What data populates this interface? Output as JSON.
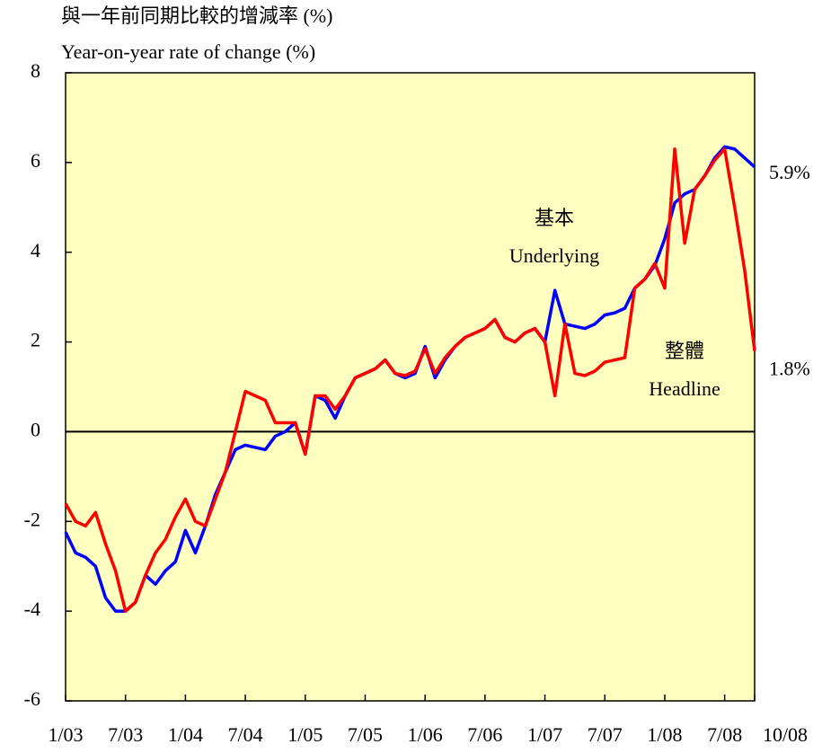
{
  "chart_data": {
    "type": "line",
    "title_zh": "與一年前同期比較的增減率 (%)",
    "title": "Year-on-year rate of change (%)",
    "categories": [
      "1/03",
      null,
      null,
      null,
      null,
      null,
      "7/03",
      null,
      null,
      null,
      null,
      null,
      "1/04",
      null,
      null,
      null,
      null,
      null,
      "7/04",
      null,
      null,
      null,
      null,
      null,
      "1/05",
      null,
      null,
      null,
      null,
      null,
      "7/05",
      null,
      null,
      null,
      null,
      null,
      "1/06",
      null,
      null,
      null,
      null,
      null,
      "7/06",
      null,
      null,
      null,
      null,
      null,
      "1/07",
      null,
      null,
      null,
      null,
      null,
      "7/07",
      null,
      null,
      null,
      null,
      null,
      "1/08",
      null,
      null,
      null,
      null,
      null,
      "7/08",
      null,
      null,
      "10/08"
    ],
    "series": [
      {
        "name": "Underlying",
        "name_zh": "基本",
        "color": "#0000ff",
        "end_label": "5.9%",
        "values": [
          -2.24,
          -2.7,
          -2.8,
          -3.0,
          -3.7,
          -4.0,
          -4.0,
          -3.8,
          -3.2,
          -3.4,
          -3.1,
          -2.9,
          -2.2,
          -2.7,
          -2.1,
          -1.4,
          -0.9,
          -0.4,
          -0.3,
          -0.35,
          -0.4,
          -0.1,
          0.0,
          0.2,
          -0.5,
          0.8,
          0.7,
          0.3,
          0.8,
          1.2,
          1.3,
          1.4,
          1.6,
          1.3,
          1.2,
          1.3,
          1.9,
          1.2,
          1.6,
          1.9,
          2.1,
          2.2,
          2.3,
          2.5,
          2.1,
          2.0,
          2.2,
          2.3,
          2.0,
          3.15,
          2.4,
          2.35,
          2.3,
          2.4,
          2.6,
          2.65,
          2.75,
          3.2,
          3.4,
          3.7,
          4.3,
          5.1,
          5.3,
          5.4,
          5.7,
          6.1,
          6.35,
          6.3,
          6.1,
          5.9
        ]
      },
      {
        "name": "Headline",
        "name_zh": "整體",
        "color": "#ff0000",
        "end_label": "1.8%",
        "values": [
          -1.6,
          -2.0,
          -2.1,
          -1.8,
          -2.5,
          -3.1,
          -4.0,
          -3.8,
          -3.2,
          -2.7,
          -2.4,
          -1.9,
          -1.5,
          -2.0,
          -2.1,
          -1.5,
          -0.9,
          0.0,
          0.9,
          0.8,
          0.7,
          0.2,
          0.2,
          0.2,
          -0.5,
          0.8,
          0.8,
          0.5,
          0.8,
          1.2,
          1.3,
          1.4,
          1.6,
          1.3,
          1.25,
          1.35,
          1.85,
          1.3,
          1.65,
          1.9,
          2.1,
          2.2,
          2.3,
          2.5,
          2.1,
          2.0,
          2.2,
          2.3,
          2.0,
          0.8,
          2.4,
          1.3,
          1.25,
          1.35,
          1.55,
          1.6,
          1.65,
          3.2,
          3.4,
          3.75,
          3.2,
          6.3,
          4.2,
          5.4,
          5.7,
          6.05,
          6.3,
          5.0,
          3.6,
          1.8
        ]
      }
    ],
    "ylim": [
      -6,
      8
    ],
    "yticks": [
      -6,
      -4,
      -2,
      0,
      2,
      4,
      6,
      8
    ],
    "zero_line": true,
    "background": "#ffffc0"
  }
}
